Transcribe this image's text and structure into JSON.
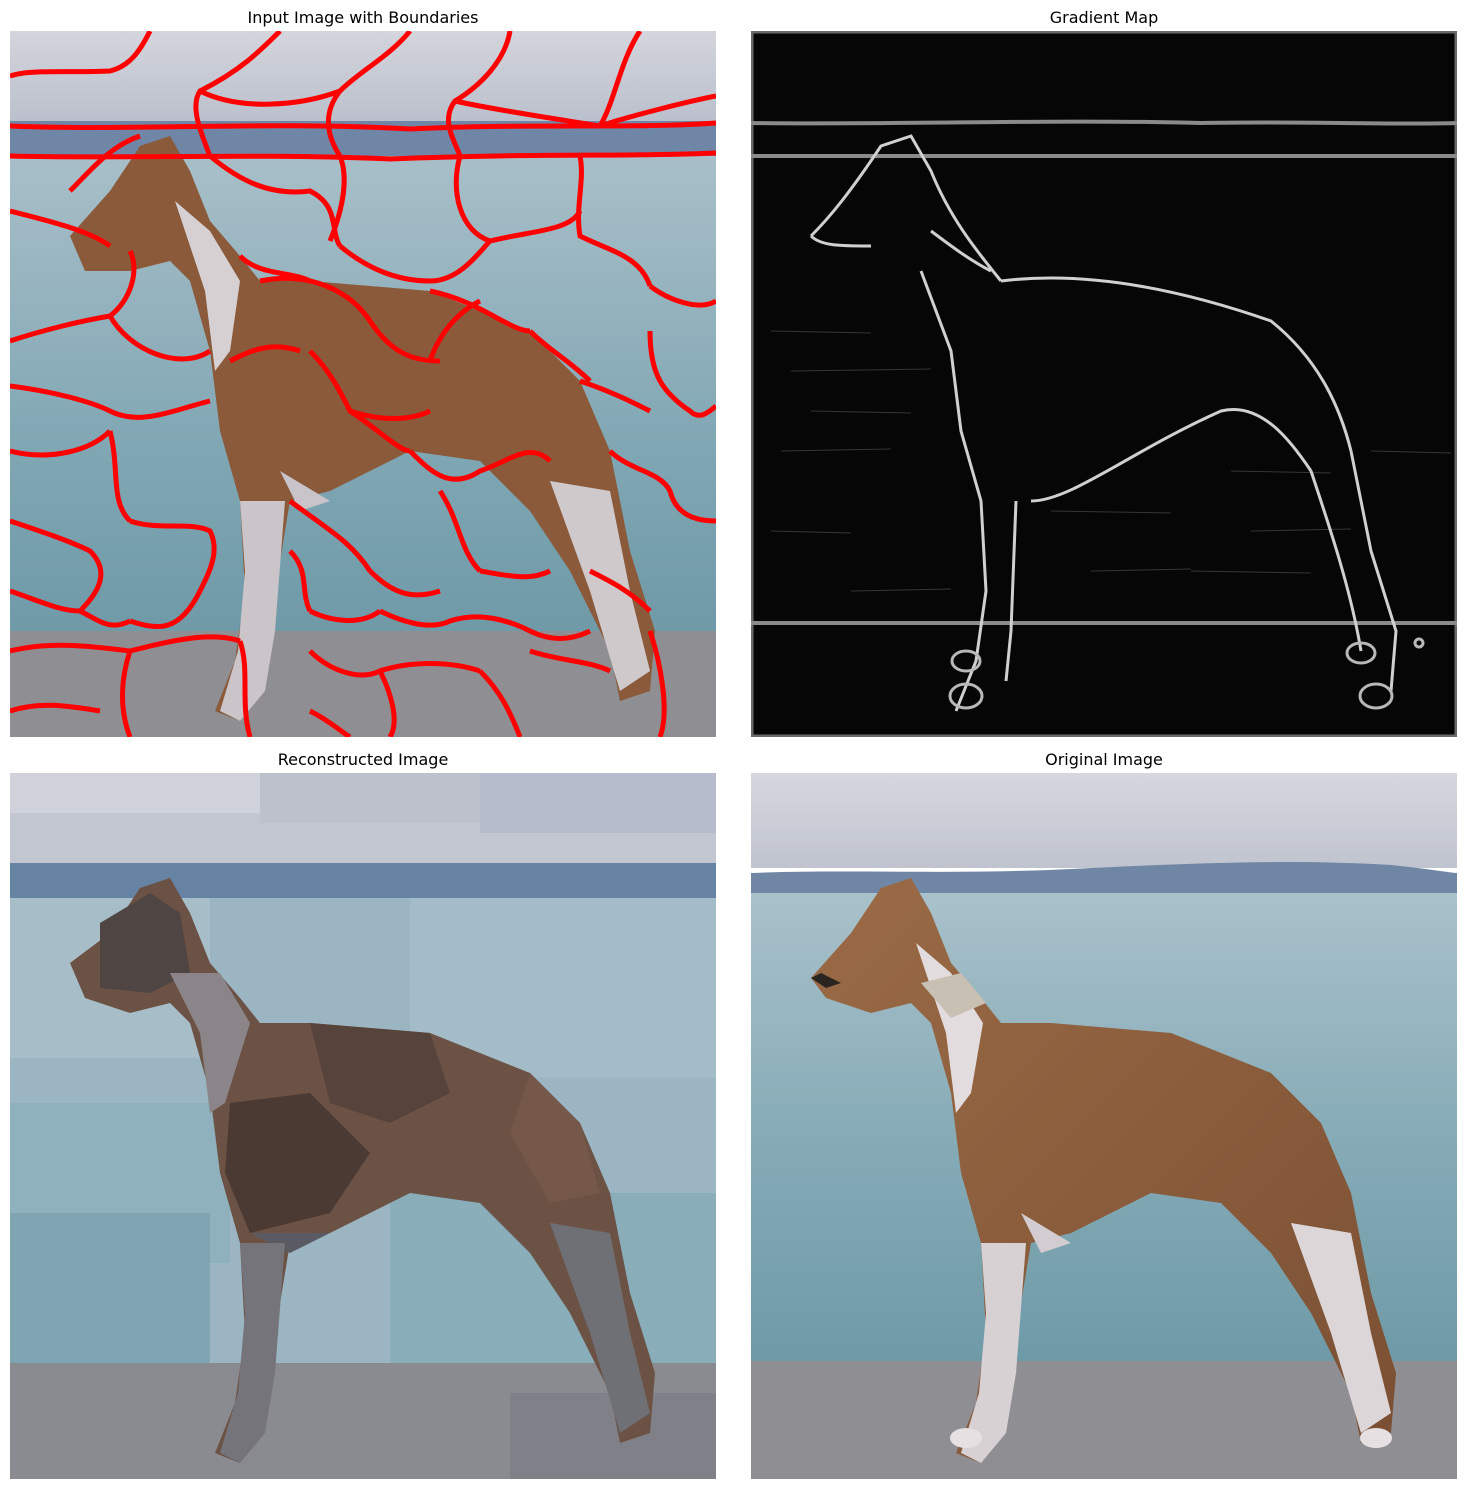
{
  "panels": [
    {
      "title": "Input Image with Boundaries"
    },
    {
      "title": "Gradient Map"
    },
    {
      "title": "Reconstructed Image"
    },
    {
      "title": "Original Image"
    }
  ],
  "colors": {
    "boundary": "#ff0000",
    "sky": "#c9ccd6",
    "hills": "#6f86a6",
    "water": "#8fb0bd",
    "pavement": "#8e8e92",
    "dog_coat": "#8a5a3a",
    "dog_white": "#d8d2d4"
  }
}
